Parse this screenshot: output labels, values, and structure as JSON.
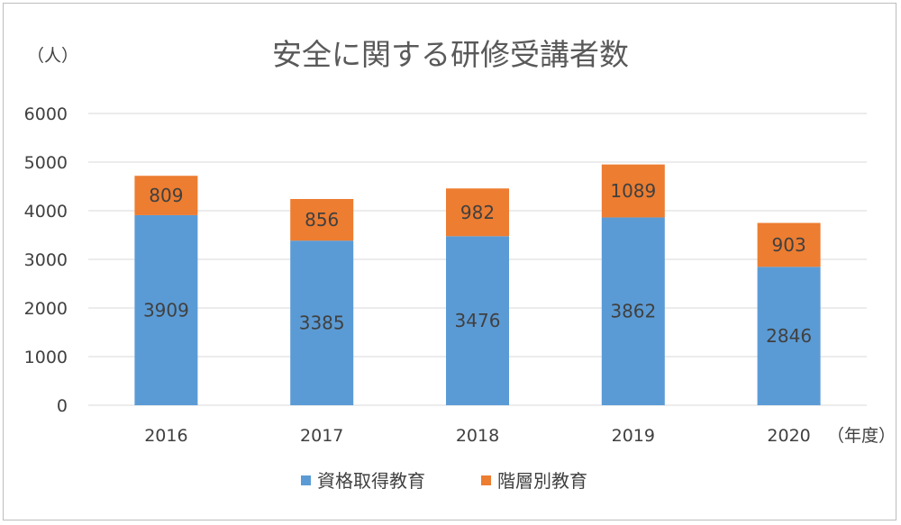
{
  "chart_data": {
    "type": "bar",
    "stacked": true,
    "title": "安全に関する研修受講者数",
    "ylabel": "（人）",
    "xlabel": "（年度）",
    "categories": [
      "2016",
      "2017",
      "2018",
      "2019",
      "2020"
    ],
    "series": [
      {
        "name": "資格取得教育",
        "color": "#5b9bd5",
        "values": [
          3909,
          3385,
          3476,
          3862,
          2846
        ]
      },
      {
        "name": "階層別教育",
        "color": "#ed7d31",
        "values": [
          809,
          856,
          982,
          1089,
          903
        ]
      }
    ],
    "ylim": [
      0,
      6000
    ],
    "yticks": [
      "0",
      "1000",
      "2000",
      "3000",
      "4000",
      "5000",
      "6000"
    ],
    "grid": true,
    "legend_position": "bottom"
  }
}
